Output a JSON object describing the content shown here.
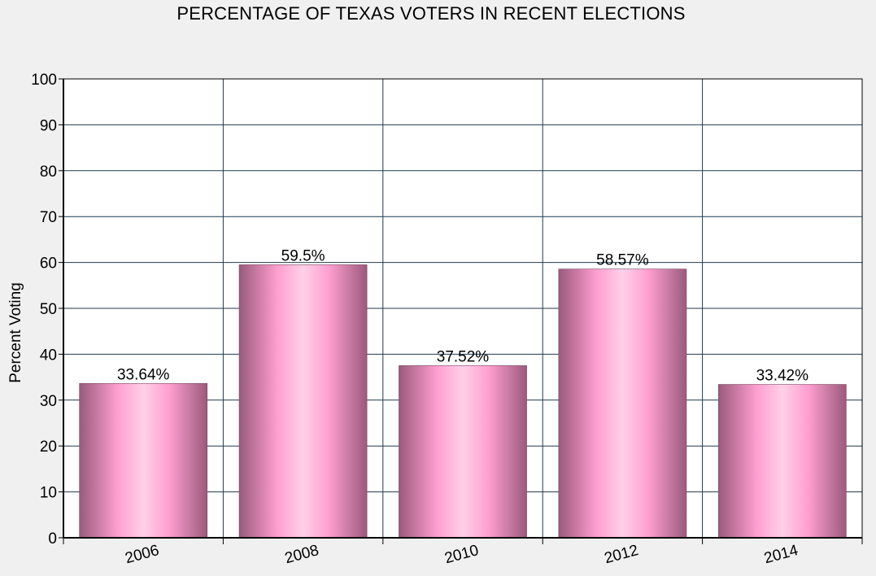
{
  "chart_data": {
    "type": "bar",
    "title": "PERCENTAGE OF TEXAS VOTERS IN RECENT ELECTIONS",
    "xlabel": "",
    "ylabel": "Percent Voting",
    "categories": [
      "2006",
      "2008",
      "2010",
      "2012",
      "2014"
    ],
    "values": [
      33.64,
      59.5,
      37.52,
      58.57,
      33.42
    ],
    "data_labels": [
      "33.64%",
      "59.5%",
      "37.52%",
      "58.57%",
      "33.42%"
    ],
    "ylim": [
      0,
      100
    ],
    "yticks": [
      0,
      10,
      20,
      30,
      40,
      50,
      60,
      70,
      80,
      90,
      100
    ],
    "grid": true,
    "colors": {
      "bar_edge": "#9a5a7c",
      "bar_mid": "#ff9fd0",
      "bar_highlight": "#ffd0e8",
      "grid": "#1f3a4f",
      "plot_background": "#ffffff",
      "page_background": "#f0f0f0"
    }
  }
}
